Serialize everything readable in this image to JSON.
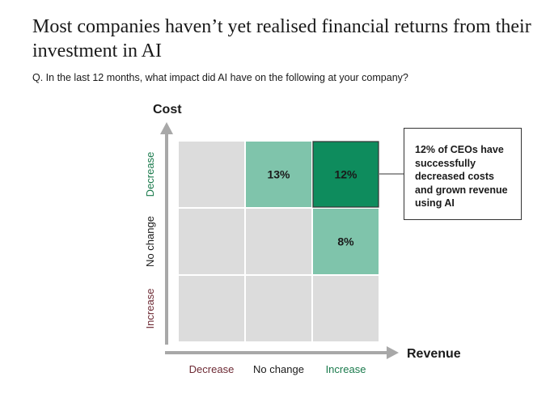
{
  "title": "Most companies haven’t yet realised financial returns from their investment in AI",
  "subtitle": "Q. In the last 12 months, what impact did AI have on the following at your company?",
  "callout": "12% of CEOs have successfully decreased costs and grown revenue using AI",
  "colors": {
    "grey_cell": "#dcdcdc",
    "light_green": "#7fc4ab",
    "dark_green": "#0e8c5d",
    "green_text": "#1a7a4c",
    "maroon_text": "#6e2b35",
    "axis": "#a8a8a8"
  },
  "chart_data": {
    "type": "heatmap",
    "xlabel": "Revenue",
    "ylabel": "Cost",
    "x_categories": [
      "Decrease",
      "No change",
      "Increase"
    ],
    "y_categories": [
      "Decrease",
      "No change",
      "Increase"
    ],
    "cells": [
      {
        "x": "No change",
        "y": "Decrease",
        "value": "13%",
        "level": "light"
      },
      {
        "x": "Increase",
        "y": "Decrease",
        "value": "12%",
        "level": "dark"
      },
      {
        "x": "Increase",
        "y": "No change",
        "value": "8%",
        "level": "light"
      }
    ]
  }
}
